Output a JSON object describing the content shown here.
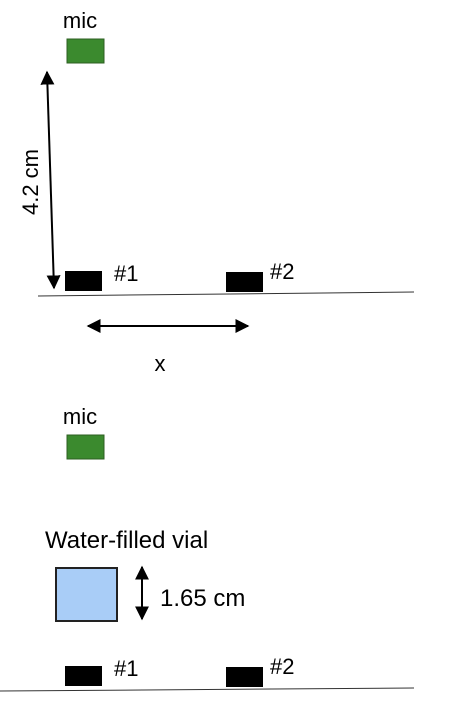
{
  "panel_top": {
    "mic_label": "mic",
    "height_label": "4.2 cm",
    "source1_label": "#1",
    "source2_label": "#2",
    "separation_label": "x"
  },
  "panel_bottom": {
    "mic_label": "mic",
    "vial_label": "Water-filled vial",
    "vial_height_label": "1.65 cm",
    "source1_label": "#1",
    "source2_label": "#2"
  },
  "colors": {
    "mic_fill": "#3b8a2e",
    "vial_fill": "#a9cdf7",
    "source_fill": "#000000",
    "line": "#333333"
  }
}
